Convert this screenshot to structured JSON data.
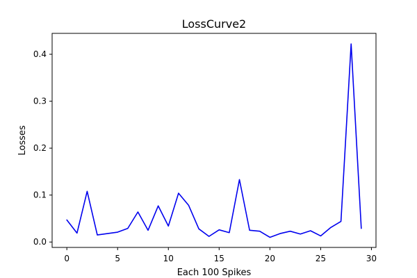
{
  "chart_data": {
    "type": "line",
    "title": "LossCurve2",
    "xlabel": "Each 100 Spikes",
    "ylabel": "Losses",
    "xlim": [
      -1.45,
      30.45
    ],
    "ylim": [
      -0.0115,
      0.4445
    ],
    "xticks": [
      0,
      5,
      10,
      15,
      20,
      25,
      30
    ],
    "yticks": [
      0.0,
      0.1,
      0.2,
      0.3,
      0.4
    ],
    "ytick_labels": [
      "0.0",
      "0.1",
      "0.2",
      "0.3",
      "0.4"
    ],
    "grid": false,
    "color": "#0000ee",
    "x": [
      0,
      1,
      2,
      3,
      4,
      5,
      6,
      7,
      8,
      9,
      10,
      11,
      12,
      13,
      14,
      15,
      16,
      17,
      18,
      19,
      20,
      21,
      22,
      23,
      24,
      25,
      26,
      27,
      28,
      29
    ],
    "values": [
      0.047,
      0.019,
      0.108,
      0.015,
      0.018,
      0.021,
      0.029,
      0.064,
      0.025,
      0.077,
      0.034,
      0.104,
      0.078,
      0.028,
      0.012,
      0.026,
      0.02,
      0.133,
      0.025,
      0.023,
      0.01,
      0.018,
      0.023,
      0.017,
      0.024,
      0.013,
      0.031,
      0.044,
      0.422,
      0.029
    ]
  }
}
